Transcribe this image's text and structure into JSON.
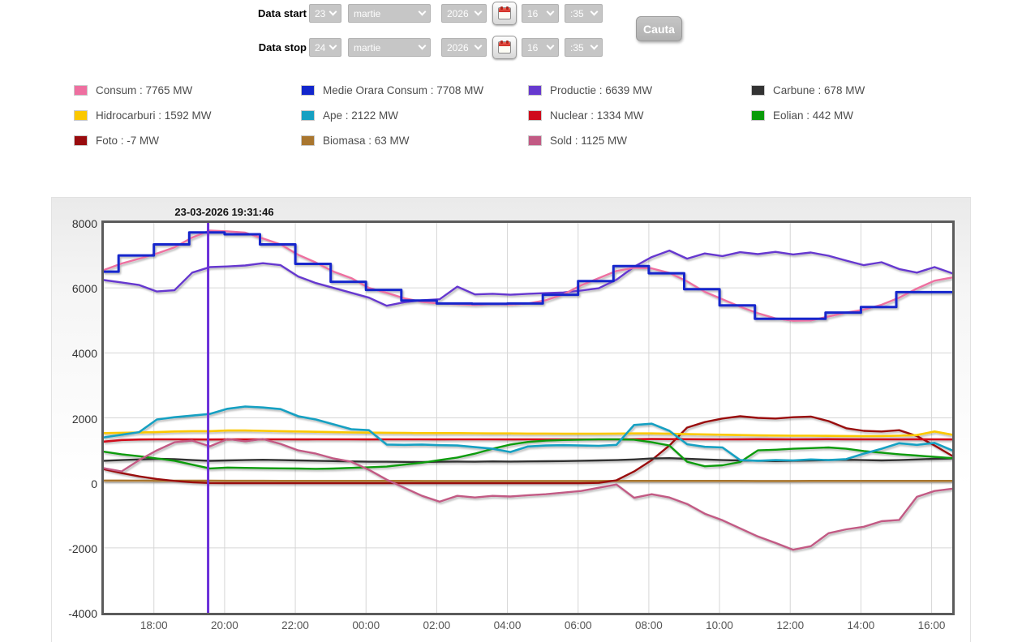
{
  "form": {
    "start_label": "Data start",
    "stop_label": "Data stop",
    "search_label": "Cauta",
    "start": {
      "day": "23",
      "month": "martie",
      "year": "2026",
      "hour": "16",
      "minute": ":35"
    },
    "stop": {
      "day": "24",
      "month": "martie",
      "year": "2026",
      "hour": "16",
      "minute": ":35"
    }
  },
  "legend": {
    "items": [
      {
        "id": "consum",
        "text": "Consum : 7765 MW",
        "color": "#ee6fa0"
      },
      {
        "id": "medie",
        "text": "Medie Orara Consum : 7708 MW",
        "color": "#1226cc"
      },
      {
        "id": "productie",
        "text": "Productie : 6639 MW",
        "color": "#6639cf"
      },
      {
        "id": "carbune",
        "text": "Carbune : 678 MW",
        "color": "#333333"
      },
      {
        "id": "hidrocarburi",
        "text": "Hidrocarburi : 1592 MW",
        "color": "#fbc800"
      },
      {
        "id": "ape",
        "text": "Ape : 2122 MW",
        "color": "#16a0c2"
      },
      {
        "id": "nuclear",
        "text": "Nuclear : 1334 MW",
        "color": "#cf0a1c"
      },
      {
        "id": "eolian",
        "text": "Eolian : 442 MW",
        "color": "#099b09"
      },
      {
        "id": "foto",
        "text": "Foto : -7 MW",
        "color": "#990b0e"
      },
      {
        "id": "biomasa",
        "text": "Biomasa : 63 MW",
        "color": "#a9762f"
      },
      {
        "id": "sold",
        "text": "Sold : 1125 MW",
        "color": "#c25a84"
      }
    ]
  },
  "chart_data": {
    "type": "line",
    "title": "23-03-2026 19:31:46",
    "x_window": "23-03-2026 16:35 to 24-03-2026 16:35",
    "x_total_minutes": 1440,
    "sample_interval_minutes": 30,
    "ylim": [
      -4000,
      8000
    ],
    "y_ticks": [
      8000,
      6000,
      4000,
      2000,
      0,
      -2000,
      -4000
    ],
    "x_ticks": [
      {
        "label": "18:00",
        "min": 85
      },
      {
        "label": "20:00",
        "min": 205
      },
      {
        "label": "22:00",
        "min": 325
      },
      {
        "label": "00:00",
        "min": 445
      },
      {
        "label": "02:00",
        "min": 565
      },
      {
        "label": "04:00",
        "min": 685
      },
      {
        "label": "06:00",
        "min": 805
      },
      {
        "label": "08:00",
        "min": 925
      },
      {
        "label": "10:00",
        "min": 1045
      },
      {
        "label": "12:00",
        "min": 1165
      },
      {
        "label": "14:00",
        "min": 1285
      },
      {
        "label": "16:00",
        "min": 1405
      }
    ],
    "cursor": {
      "minutes": 177,
      "time": "19:31:46",
      "color": "#6a2fd9"
    },
    "grid_color": "#d6d6d6",
    "draw_order": [
      "biomasa",
      "foto",
      "carbune",
      "nuclear",
      "hidrocarburi",
      "eolian",
      "ape",
      "sold",
      "productie",
      "consum",
      "medie"
    ],
    "series": [
      {
        "id": "consum",
        "name": "Consum",
        "unit": "MW",
        "color": "#ee6fa0",
        "style": "line",
        "width": 2.4,
        "values": [
          6550,
          6750,
          6900,
          7060,
          7250,
          7550,
          7765,
          7740,
          7700,
          7520,
          7340,
          7020,
          6780,
          6500,
          6300,
          6000,
          5850,
          5680,
          5570,
          5520,
          5500,
          5480,
          5500,
          5490,
          5520,
          5620,
          5800,
          6080,
          6300,
          6520,
          6620,
          6600,
          6460,
          6200,
          5880,
          5650,
          5420,
          5220,
          5060,
          4990,
          5000,
          5120,
          5240,
          5330,
          5480,
          5700,
          5980,
          6220,
          6320
        ]
      },
      {
        "id": "medie",
        "name": "Medie Orara Consum",
        "unit": "MW",
        "color": "#1226cc",
        "style": "hourly-steps",
        "width": 3,
        "first_step_end_minute": 25,
        "hour_values": [
          6500,
          7000,
          7340,
          7708,
          7650,
          7340,
          6740,
          6190,
          5940,
          5610,
          5520,
          5510,
          5520,
          5790,
          6210,
          6670,
          6450,
          5960,
          5460,
          5050,
          5050,
          5240,
          5410,
          5870,
          5870
        ]
      },
      {
        "id": "productie",
        "name": "Productie",
        "unit": "MW",
        "color": "#6639cf",
        "style": "line",
        "width": 2.4,
        "values": [
          6240,
          6170,
          6090,
          5890,
          5930,
          6470,
          6640,
          6660,
          6690,
          6760,
          6700,
          6350,
          6150,
          6000,
          5850,
          5700,
          5450,
          5560,
          5620,
          5650,
          6040,
          5800,
          5820,
          5790,
          5820,
          5840,
          5860,
          5920,
          5990,
          6250,
          6650,
          6950,
          7150,
          6900,
          7060,
          6980,
          7100,
          7040,
          7110,
          7030,
          7090,
          6990,
          6840,
          6700,
          6790,
          6580,
          6470,
          6640,
          6450
        ]
      },
      {
        "id": "carbune",
        "name": "Carbune",
        "unit": "MW",
        "color": "#333333",
        "style": "line",
        "width": 2.4,
        "values": [
          680,
          700,
          720,
          740,
          730,
          700,
          678,
          690,
          700,
          710,
          700,
          690,
          680,
          670,
          660,
          650,
          650,
          645,
          640,
          650,
          655,
          650,
          660,
          655,
          660,
          665,
          670,
          680,
          690,
          700,
          720,
          750,
          760,
          740,
          720,
          700,
          690,
          680,
          670,
          680,
          690,
          700,
          710,
          700,
          690,
          700,
          720,
          740,
          750
        ]
      },
      {
        "id": "hidrocarburi",
        "name": "Hidrocarburi",
        "unit": "MW",
        "color": "#fbc800",
        "style": "line",
        "width": 2.6,
        "values": [
          1530,
          1540,
          1550,
          1560,
          1580,
          1590,
          1592,
          1610,
          1610,
          1600,
          1590,
          1580,
          1570,
          1560,
          1550,
          1545,
          1540,
          1535,
          1530,
          1530,
          1530,
          1525,
          1520,
          1520,
          1515,
          1515,
          1510,
          1510,
          1510,
          1515,
          1520,
          1520,
          1510,
          1500,
          1490,
          1480,
          1470,
          1460,
          1455,
          1450,
          1450,
          1445,
          1440,
          1435,
          1440,
          1450,
          1470,
          1580,
          1480
        ]
      },
      {
        "id": "ape",
        "name": "Ape",
        "unit": "MW",
        "color": "#16a0c2",
        "style": "line",
        "width": 2.6,
        "values": [
          1400,
          1480,
          1560,
          1950,
          2020,
          2070,
          2122,
          2280,
          2350,
          2320,
          2270,
          2050,
          1950,
          1800,
          1650,
          1620,
          1180,
          1170,
          1180,
          1160,
          1150,
          1100,
          1050,
          950,
          1120,
          1150,
          1160,
          1150,
          1140,
          1170,
          1780,
          1820,
          1600,
          1190,
          1110,
          1090,
          700,
          680,
          700,
          690,
          720,
          700,
          730,
          900,
          1050,
          1220,
          1170,
          1230,
          1000
        ]
      },
      {
        "id": "nuclear",
        "name": "Nuclear",
        "unit": "MW",
        "color": "#cf0a1c",
        "style": "line",
        "width": 2.6,
        "values": [
          1270,
          1320,
          1335,
          1340,
          1338,
          1336,
          1334,
          1336,
          1338,
          1340,
          1338,
          1336,
          1338,
          1340,
          1338,
          1336,
          1338,
          1340,
          1338,
          1336,
          1338,
          1340,
          1338,
          1336,
          1338,
          1340,
          1338,
          1336,
          1338,
          1340,
          1344,
          1348,
          1346,
          1344,
          1342,
          1340,
          1342,
          1344,
          1342,
          1340,
          1342,
          1344,
          1342,
          1340,
          1338,
          1340,
          1342,
          1340,
          1336
        ]
      },
      {
        "id": "eolian",
        "name": "Eolian",
        "unit": "MW",
        "color": "#099b09",
        "style": "line",
        "width": 2.4,
        "values": [
          960,
          880,
          820,
          750,
          680,
          560,
          442,
          470,
          460,
          450,
          445,
          440,
          430,
          440,
          460,
          480,
          500,
          560,
          620,
          700,
          780,
          900,
          1050,
          1180,
          1260,
          1300,
          1320,
          1330,
          1340,
          1340,
          1330,
          1250,
          1150,
          650,
          510,
          540,
          640,
          1000,
          1020,
          1050,
          1070,
          1090,
          1050,
          980,
          930,
          880,
          840,
          800,
          760
        ]
      },
      {
        "id": "foto",
        "name": "Foto",
        "unit": "MW",
        "color": "#990b0e",
        "style": "line",
        "width": 2.4,
        "values": [
          420,
          300,
          200,
          120,
          60,
          20,
          -7,
          -10,
          -10,
          -10,
          -10,
          -10,
          -10,
          -10,
          -10,
          -10,
          -10,
          -10,
          -10,
          -10,
          -10,
          -10,
          -10,
          -10,
          -10,
          -10,
          -10,
          -10,
          0,
          80,
          350,
          700,
          1150,
          1700,
          1870,
          1980,
          2050,
          2000,
          1980,
          2020,
          2040,
          1900,
          1680,
          1600,
          1580,
          1620,
          1440,
          1150,
          830
        ]
      },
      {
        "id": "biomasa",
        "name": "Biomasa",
        "unit": "MW",
        "color": "#a9762f",
        "style": "line",
        "width": 2.6,
        "values": [
          70,
          68,
          66,
          65,
          64,
          63,
          63,
          62,
          62,
          61,
          60,
          60,
          60,
          59,
          59,
          58,
          58,
          58,
          57,
          57,
          57,
          57,
          57,
          57,
          57,
          57,
          57,
          57,
          57,
          58,
          58,
          58,
          58,
          58,
          58,
          58,
          58,
          57,
          57,
          57,
          58,
          58,
          58,
          58,
          59,
          59,
          60,
          60,
          60
        ]
      },
      {
        "id": "sold",
        "name": "Sold",
        "unit": "MW",
        "color": "#c25a84",
        "style": "line",
        "width": 2.4,
        "values": [
          450,
          350,
          700,
          1000,
          1250,
          1300,
          1125,
          1350,
          1280,
          1350,
          1200,
          1000,
          900,
          750,
          650,
          400,
          100,
          -150,
          -400,
          -580,
          -400,
          -450,
          -400,
          -420,
          -380,
          -350,
          -300,
          -250,
          -150,
          -50,
          -460,
          -350,
          -450,
          -650,
          -950,
          -1150,
          -1400,
          -1650,
          -1850,
          -2060,
          -1950,
          -1550,
          -1430,
          -1350,
          -1180,
          -1140,
          -430,
          -250,
          -180
        ]
      }
    ]
  }
}
